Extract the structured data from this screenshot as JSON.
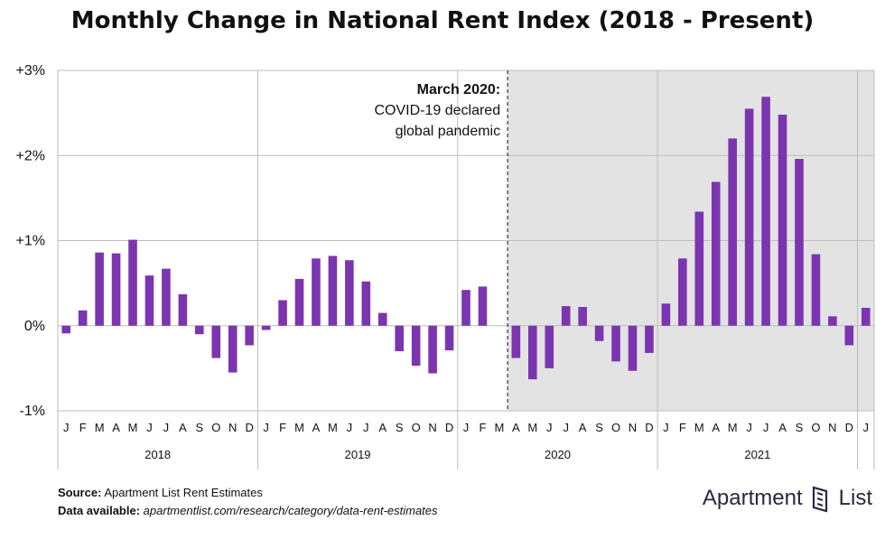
{
  "title": "Monthly Change in National Rent Index (2018 - Present)",
  "colors": {
    "bar": "#7b35b0",
    "shade": "#e3e3e3",
    "grid": "#bdbdbd",
    "text": "#111111",
    "brand": "#2e2540"
  },
  "annotation": {
    "head": "March 2020:",
    "line1": "COVID-19 declared",
    "line2": "global pandemic",
    "index": 26
  },
  "footer": {
    "source_label": "Source:",
    "source_text": "Apartment List Rent Estimates",
    "avail_label": "Data available:",
    "avail_text": "apartmentlist.com/research/category/data-rent-estimates"
  },
  "brand": {
    "name1": "Apartment",
    "name2": "List",
    "icon": "apartment-list-logo-icon"
  },
  "chart_data": {
    "type": "bar",
    "ylim": [
      -1,
      3
    ],
    "yticks": [
      3,
      2,
      1,
      0,
      -1
    ],
    "ytick_labels": [
      "+3%",
      "+2%",
      "+1%",
      "0%",
      "-1%"
    ],
    "shade_from_index": 27,
    "years": [
      "2018",
      "2019",
      "2020",
      "2021"
    ],
    "months": [
      "J",
      "F",
      "M",
      "A",
      "M",
      "J",
      "J",
      "A",
      "S",
      "O",
      "N",
      "D",
      "J",
      "F",
      "M",
      "A",
      "M",
      "J",
      "J",
      "A",
      "S",
      "O",
      "N",
      "D",
      "J",
      "F",
      "M",
      "A",
      "M",
      "J",
      "J",
      "A",
      "S",
      "O",
      "N",
      "D",
      "J",
      "F",
      "M",
      "A",
      "M",
      "J",
      "J",
      "A",
      "S",
      "O",
      "N",
      "D",
      "J"
    ],
    "values": [
      -0.09,
      0.18,
      0.86,
      0.85,
      1.01,
      0.59,
      0.67,
      0.37,
      -0.1,
      -0.38,
      -0.55,
      -0.23,
      -0.05,
      0.3,
      0.55,
      0.79,
      0.82,
      0.77,
      0.52,
      0.15,
      -0.3,
      -0.47,
      -0.56,
      -0.29,
      0.42,
      0.46,
      0.0,
      -0.38,
      -0.63,
      -0.5,
      0.23,
      0.22,
      -0.18,
      -0.42,
      -0.53,
      -0.32,
      0.26,
      0.79,
      1.34,
      1.69,
      2.2,
      2.55,
      2.69,
      2.48,
      1.96,
      0.84,
      0.11,
      -0.23,
      0.21
    ]
  }
}
